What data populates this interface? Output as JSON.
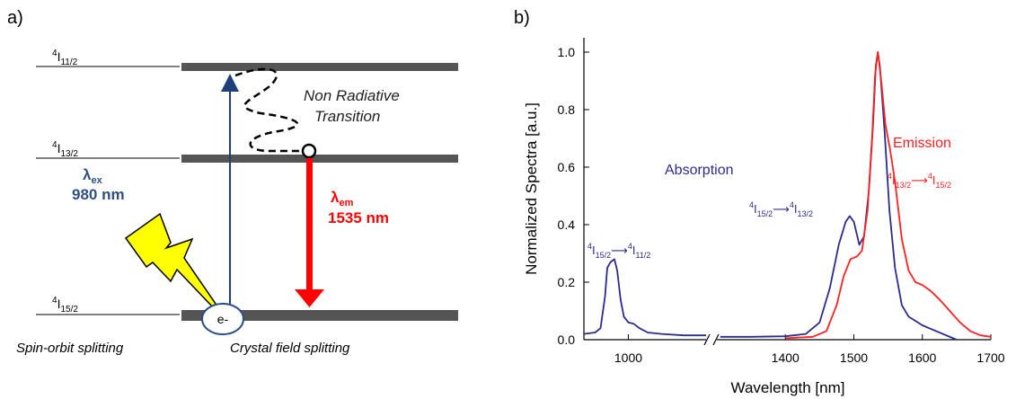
{
  "panel_a": {
    "label": "a)",
    "levels": [
      {
        "base": "4",
        "main": "I",
        "sub": "11/2"
      },
      {
        "base": "4",
        "main": "I",
        "sub": "13/2"
      },
      {
        "base": "4",
        "main": "I",
        "sub": "15/2"
      }
    ],
    "nonrad_line1": "Non Radiative",
    "nonrad_line2": "Transition",
    "excitation": {
      "symbol": "λ",
      "sub": "ex",
      "value": "980 nm",
      "color": "#2f4f7f"
    },
    "emission": {
      "symbol": "λ",
      "sub": "em",
      "value": "1535 nm",
      "color": "#ff0000"
    },
    "electron": "e-",
    "spin_orbit": "Spin-orbit splitting",
    "crystal_field": "Crystal field splitting",
    "colors": {
      "level_bar": "#555555",
      "up_arrow": "#1f3f7a",
      "bolt": "#ffff00"
    }
  },
  "panel_b": {
    "label": "b)",
    "absorption_label": "Absorption",
    "emission_label": "Emission",
    "ann_abs_980": {
      "a_sup": "4",
      "a_main": "I",
      "a_sub": "15/2",
      "b_sup": "4",
      "b_main": "I",
      "b_sub": "11/2"
    },
    "ann_abs_1535": {
      "a_sup": "4",
      "a_main": "I",
      "a_sub": "15/2",
      "b_sup": "4",
      "b_main": "I",
      "b_sub": "13/2"
    },
    "ann_em": {
      "a_sup": "4",
      "a_main": "I",
      "a_sub": "13/2",
      "b_sup": "4",
      "b_main": "I",
      "b_sub": "15/2"
    },
    "arrow_glyph": "⟶"
  },
  "chart_data": {
    "type": "line",
    "title": "",
    "xlabel": "Wavelength [nm]",
    "ylabel": "Normalized Spectra [a.u.]",
    "ylim": [
      0,
      1.05
    ],
    "x_break": true,
    "x_segments": [
      {
        "range": [
          920,
          1140
        ],
        "ticks": [
          1000
        ]
      },
      {
        "range": [
          1300,
          1700
        ],
        "ticks": [
          1400,
          1500,
          1600,
          1700
        ]
      }
    ],
    "yticks": [
      0.0,
      0.2,
      0.4,
      0.6,
      0.8,
      1.0
    ],
    "ytick_labels": [
      "0.0",
      "0.2",
      "0.4",
      "0.6",
      "0.8",
      "1.0"
    ],
    "series": [
      {
        "name": "Absorption",
        "color": "#2b2b8c",
        "segments": [
          [
            [
              920,
              0.02
            ],
            [
              940,
              0.025
            ],
            [
              950,
              0.04
            ],
            [
              958,
              0.15
            ],
            [
              962,
              0.25
            ],
            [
              968,
              0.27
            ],
            [
              975,
              0.28
            ],
            [
              980,
              0.24
            ],
            [
              986,
              0.14
            ],
            [
              992,
              0.08
            ],
            [
              1000,
              0.06
            ],
            [
              1010,
              0.055
            ],
            [
              1020,
              0.04
            ],
            [
              1035,
              0.025
            ],
            [
              1060,
              0.02
            ],
            [
              1100,
              0.015
            ],
            [
              1140,
              0.015
            ]
          ],
          [
            [
              1305,
              0.01
            ],
            [
              1350,
              0.01
            ],
            [
              1400,
              0.012
            ],
            [
              1430,
              0.02
            ],
            [
              1450,
              0.06
            ],
            [
              1465,
              0.18
            ],
            [
              1478,
              0.33
            ],
            [
              1488,
              0.41
            ],
            [
              1494,
              0.43
            ],
            [
              1500,
              0.41
            ],
            [
              1508,
              0.33
            ],
            [
              1515,
              0.36
            ],
            [
              1522,
              0.52
            ],
            [
              1528,
              0.75
            ],
            [
              1532,
              0.95
            ],
            [
              1535,
              1.0
            ],
            [
              1538,
              0.95
            ],
            [
              1545,
              0.72
            ],
            [
              1552,
              0.45
            ],
            [
              1560,
              0.25
            ],
            [
              1570,
              0.12
            ],
            [
              1580,
              0.08
            ],
            [
              1600,
              0.05
            ],
            [
              1620,
              0.03
            ],
            [
              1650,
              0.0
            ]
          ]
        ]
      },
      {
        "name": "Emission",
        "color": "#ff2020",
        "segments": [
          [
            [
              1400,
              0.005
            ],
            [
              1440,
              0.01
            ],
            [
              1460,
              0.03
            ],
            [
              1475,
              0.12
            ],
            [
              1485,
              0.22
            ],
            [
              1495,
              0.28
            ],
            [
              1505,
              0.29
            ],
            [
              1512,
              0.31
            ],
            [
              1520,
              0.45
            ],
            [
              1527,
              0.72
            ],
            [
              1531,
              0.92
            ],
            [
              1535,
              1.0
            ],
            [
              1540,
              0.9
            ],
            [
              1546,
              0.75
            ],
            [
              1553,
              0.66
            ],
            [
              1560,
              0.55
            ],
            [
              1570,
              0.35
            ],
            [
              1580,
              0.24
            ],
            [
              1590,
              0.2
            ],
            [
              1600,
              0.19
            ],
            [
              1612,
              0.17
            ],
            [
              1625,
              0.14
            ],
            [
              1640,
              0.1
            ],
            [
              1655,
              0.06
            ],
            [
              1670,
              0.03
            ],
            [
              1685,
              0.015
            ],
            [
              1700,
              0.01
            ]
          ]
        ]
      }
    ]
  }
}
